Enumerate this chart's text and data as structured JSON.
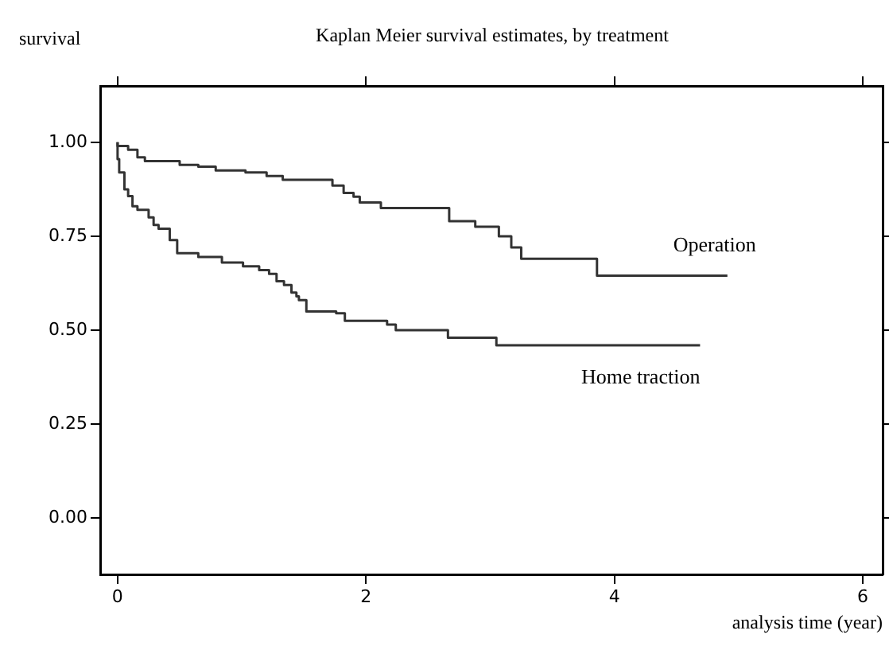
{
  "chart_data": {
    "type": "step",
    "title": "Kaplan Meier survival estimates, by treatment",
    "ylabel": "survival",
    "xlabel": "analysis time (year)",
    "xlim": [
      -0.14,
      6.16
    ],
    "xticks": [
      0,
      2,
      4,
      6
    ],
    "ylim": [
      -0.15,
      1.15
    ],
    "yticks": [
      {
        "value": 0,
        "label": "0.00"
      },
      {
        "value": 0.25,
        "label": "0.25"
      },
      {
        "value": 0.5,
        "label": "0.50"
      },
      {
        "value": 0.75,
        "label": "0.75"
      },
      {
        "value": 1,
        "label": "1.00"
      }
    ],
    "grid": false,
    "legend": false,
    "marker": "none",
    "series": [
      {
        "name": "Operation",
        "color": "#333333",
        "x": [
          0,
          0.085,
          0.16,
          0.22,
          0.5,
          0.65,
          0.79,
          1.03,
          1.2,
          1.33,
          1.73,
          1.82,
          1.9,
          1.95,
          2.12,
          2.67,
          2.88,
          3.07,
          3.17,
          3.25,
          3.86,
          4.17,
          4.91
        ],
        "values": [
          1,
          0.99,
          0.98,
          0.96,
          0.95,
          0.94,
          0.935,
          0.925,
          0.92,
          0.91,
          0.9,
          0.885,
          0.865,
          0.855,
          0.84,
          0.825,
          0.79,
          0.775,
          0.75,
          0.72,
          0.69,
          0.645,
          0.645
        ]
      },
      {
        "name": "Home traction",
        "color": "#333333",
        "x": [
          0,
          0.013,
          0.055,
          0.085,
          0.12,
          0.16,
          0.25,
          0.29,
          0.33,
          0.42,
          0.48,
          0.65,
          0.84,
          1.01,
          1.14,
          1.22,
          1.28,
          1.34,
          1.4,
          1.44,
          1.46,
          1.52,
          1.76,
          1.83,
          2.17,
          2.24,
          2.66,
          3.05,
          3.34,
          4.69
        ],
        "values": [
          1,
          0.955,
          0.92,
          0.875,
          0.857,
          0.83,
          0.82,
          0.8,
          0.78,
          0.77,
          0.74,
          0.705,
          0.695,
          0.68,
          0.67,
          0.66,
          0.65,
          0.63,
          0.62,
          0.6,
          0.59,
          0.58,
          0.55,
          0.545,
          0.525,
          0.515,
          0.5,
          0.48,
          0.46,
          0.46
        ]
      }
    ]
  }
}
